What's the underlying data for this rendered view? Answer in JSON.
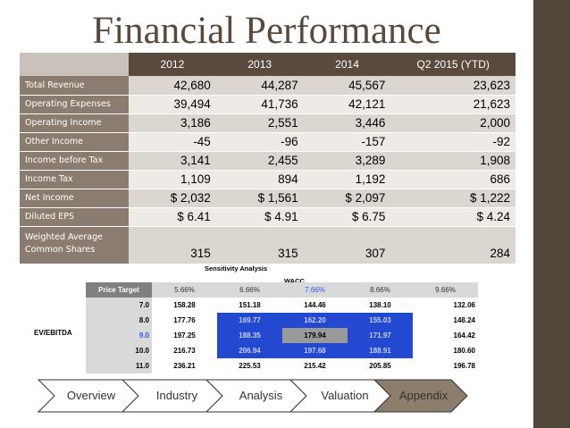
{
  "title": "Financial Performance",
  "financials": {
    "years": [
      "2012",
      "2013",
      "2014",
      "Q2 2015 (YTD)"
    ],
    "rows": [
      {
        "label": "Total Revenue",
        "values": [
          "42,680",
          "44,287",
          "45,567",
          "23,623"
        ]
      },
      {
        "label": "Operating Expenses",
        "values": [
          "39,494",
          "41,736",
          "42,121",
          "21,623"
        ]
      },
      {
        "label": "Operating Income",
        "values": [
          "3,186",
          "2,551",
          "3,446",
          "2,000"
        ]
      },
      {
        "label": "Other Income",
        "values": [
          "-45",
          "-96",
          "-157",
          "-92"
        ]
      },
      {
        "label": "Income before Tax",
        "values": [
          "3,141",
          "2,455",
          "3,289",
          "1,908"
        ]
      },
      {
        "label": "Income Tax",
        "values": [
          "1,109",
          "894",
          "1,192",
          "686"
        ]
      },
      {
        "label": "Net Income",
        "values": [
          "$ 2,032",
          "$ 1,561",
          "$ 2,097",
          "$ 1,222"
        ]
      },
      {
        "label": "Diluted EPS",
        "values": [
          "$ 6.41",
          "$ 4.91",
          "$ 6.75",
          "$ 4.24"
        ]
      },
      {
        "label_line1": "Weighted Average",
        "label_line2": "Common Shares",
        "values": [
          "315",
          "315",
          "307",
          "284"
        ]
      }
    ]
  },
  "sensitivity": {
    "title": "Sensitivity Analysis",
    "col_axis": "WACC",
    "row_axis": "EV/EBITDA",
    "corner": "Price Target",
    "wacc": [
      "5.66%",
      "6.66%",
      "7.66%",
      "8.66%",
      "9.66%"
    ],
    "rows": [
      {
        "multiple": "7.0",
        "values": [
          "158.28",
          "151.18",
          "144.46",
          "138.10",
          "132.06"
        ]
      },
      {
        "multiple": "8.0",
        "values": [
          "177.76",
          "169.77",
          "162.20",
          "155.03",
          "148.24"
        ]
      },
      {
        "multiple": "9.0",
        "values": [
          "197.25",
          "188.35",
          "179.94",
          "171.97",
          "164.42"
        ]
      },
      {
        "multiple": "10.0",
        "values": [
          "216.73",
          "206.94",
          "197.68",
          "188.91",
          "180.60"
        ]
      },
      {
        "multiple": "11.0",
        "values": [
          "236.21",
          "225.53",
          "215.42",
          "205.85",
          "196.78"
        ]
      }
    ]
  },
  "nav": {
    "items": [
      "Overview",
      "Industry",
      "Analysis",
      "Valuation",
      "Appendix"
    ],
    "active": "Appendix"
  },
  "colors": {
    "brown": "#5a4a3d",
    "label_bg": "#8a7d6f",
    "highlight_blue": "#2449d1",
    "appendix_fill": "#8c7d6d"
  }
}
